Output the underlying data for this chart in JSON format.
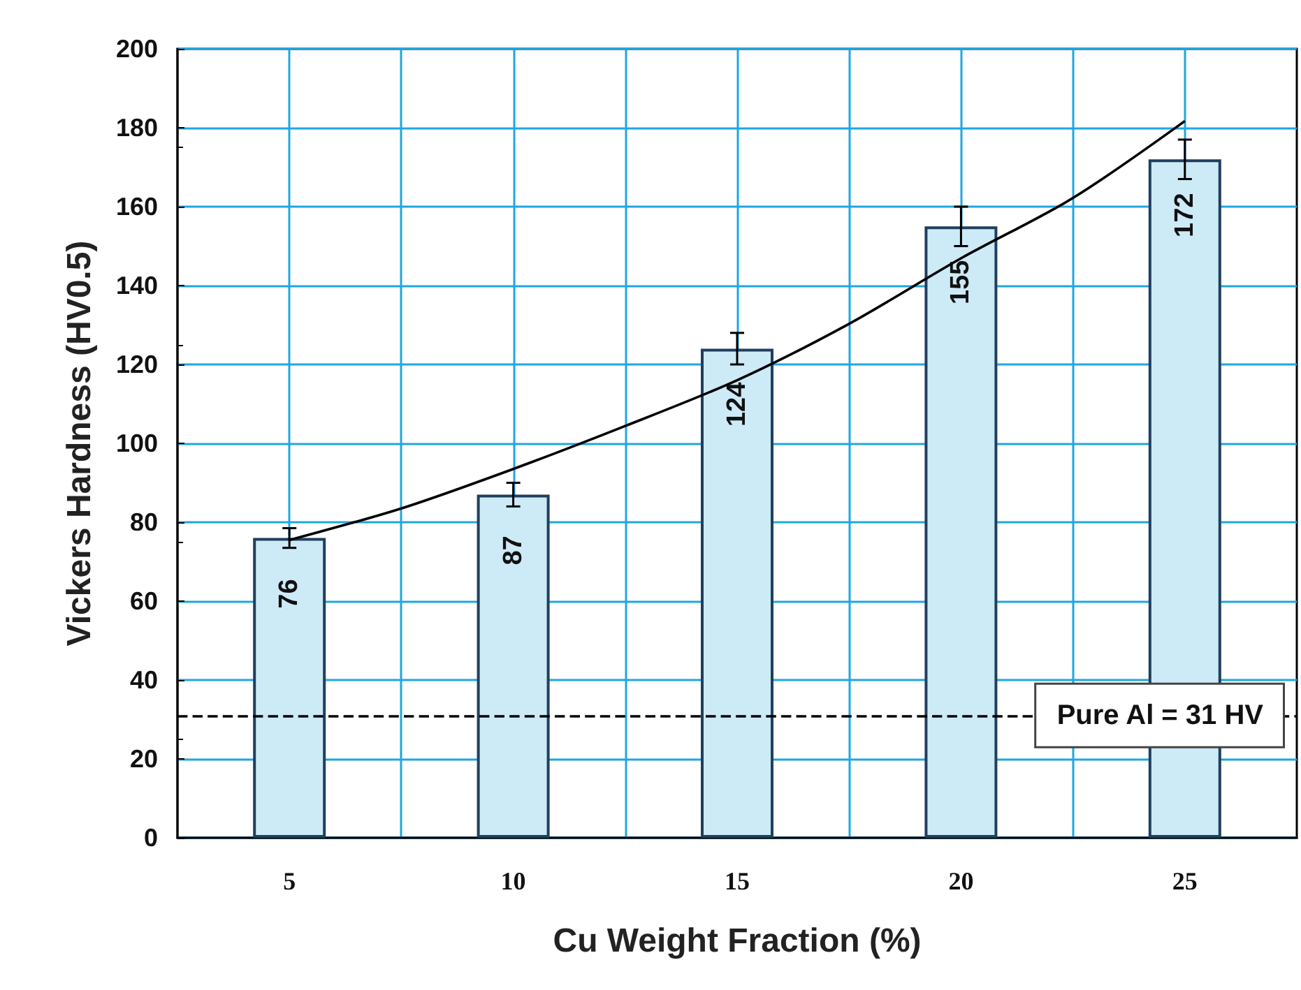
{
  "chart_data": {
    "type": "bar",
    "xlabel": "Cu Weight Fraction (%)",
    "ylabel": "Vickers Hardness (HV0.5)",
    "x": [
      5,
      10,
      15,
      20,
      25
    ],
    "xlim": [
      2.5,
      27.5
    ],
    "xticks": [
      5,
      {
        "value": 7.5,
        "label": null
      },
      10,
      {
        "value": 12.5,
        "label": null
      },
      15,
      {
        "value": 17.5,
        "label": null
      },
      20,
      {
        "value": 22.5,
        "label": null
      },
      25
    ],
    "ylim": [
      0,
      200
    ],
    "yticks": [
      0,
      20,
      40,
      60,
      80,
      100,
      120,
      140,
      160,
      180,
      200
    ],
    "series": [
      {
        "color": "#cdeaf7",
        "values": [
          76,
          87,
          124,
          155,
          172
        ],
        "errors": [
          2.5,
          3,
          4,
          5,
          5
        ],
        "value_labels": [
          "76",
          "87",
          "124",
          "155",
          "172"
        ]
      },
      {
        "type": "line",
        "color": "#000000",
        "x": [
          5,
          7.5,
          10,
          12.5,
          15,
          17.5,
          20,
          22.5,
          25
        ],
        "values": [
          75.5,
          83.5,
          93.5,
          104.4,
          116,
          130.3,
          146.9,
          162.2,
          181.7
        ]
      }
    ],
    "grid": true,
    "marker": "none",
    "ref_lines": [
      {
        "axis": "y",
        "value": 31,
        "label": "Pure Al = 31 HV",
        "color": "#000000",
        "line_style": "dashed"
      }
    ]
  }
}
